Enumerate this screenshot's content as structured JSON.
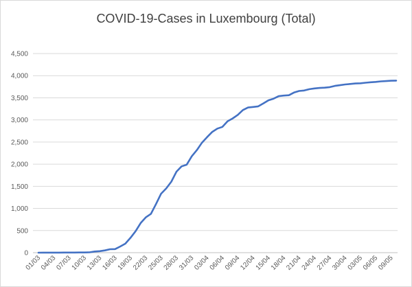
{
  "chart_data": {
    "type": "line",
    "title": "COVID-19-Cases in Luxembourg (Total)",
    "xlabel": "",
    "ylabel": "",
    "ylim": [
      0,
      4500
    ],
    "yticks": [
      0,
      500,
      1000,
      1500,
      2000,
      2500,
      3000,
      3500,
      4000,
      4500
    ],
    "ytick_labels": [
      "0",
      "500",
      "1,000",
      "1,500",
      "2,000",
      "2,500",
      "3,000",
      "3,500",
      "4,000",
      "4,500"
    ],
    "grid": true,
    "legend": "none",
    "series_color": "#4472c4",
    "x": [
      "01/03",
      "02/03",
      "03/03",
      "04/03",
      "05/03",
      "06/03",
      "07/03",
      "08/03",
      "09/03",
      "10/03",
      "11/03",
      "12/03",
      "13/03",
      "14/03",
      "15/03",
      "16/03",
      "17/03",
      "18/03",
      "19/03",
      "20/03",
      "21/03",
      "22/03",
      "23/03",
      "24/03",
      "25/03",
      "26/03",
      "27/03",
      "28/03",
      "29/03",
      "30/03",
      "31/03",
      "01/04",
      "02/04",
      "03/04",
      "04/04",
      "05/04",
      "06/04",
      "07/04",
      "08/04",
      "09/04",
      "10/04",
      "11/04",
      "12/04",
      "13/04",
      "14/04",
      "15/04",
      "16/04",
      "17/04",
      "18/04",
      "19/04",
      "20/04",
      "21/04",
      "22/04",
      "23/04",
      "24/04",
      "25/04",
      "26/04",
      "27/04",
      "28/04",
      "29/04",
      "30/04",
      "01/05",
      "02/05",
      "03/05",
      "04/05",
      "05/05",
      "06/05",
      "07/05",
      "08/05",
      "09/05",
      "10/05"
    ],
    "x_tick_labels": [
      "01/03",
      "04/03",
      "07/03",
      "10/03",
      "13/03",
      "16/03",
      "19/03",
      "22/03",
      "25/03",
      "28/03",
      "31/03",
      "03/04",
      "06/04",
      "09/04",
      "12/04",
      "15/04",
      "18/04",
      "21/04",
      "24/04",
      "27/04",
      "30/04",
      "03/05",
      "06/05",
      "09/05"
    ],
    "series": [
      {
        "values": [
          0,
          1,
          1,
          1,
          2,
          3,
          3,
          3,
          4,
          5,
          7,
          26,
          34,
          51,
          77,
          81,
          140,
          203,
          335,
          484,
          670,
          798,
          875,
          1099,
          1333,
          1453,
          1605,
          1831,
          1950,
          1988,
          2178,
          2319,
          2487,
          2612,
          2729,
          2804,
          2843,
          2970,
          3034,
          3115,
          3223,
          3281,
          3292,
          3307,
          3373,
          3444,
          3480,
          3537,
          3550,
          3558,
          3618,
          3654,
          3665,
          3695,
          3711,
          3723,
          3729,
          3741,
          3769,
          3784,
          3802,
          3812,
          3824,
          3828,
          3840,
          3851,
          3859,
          3871,
          3877,
          3886,
          3888
        ]
      }
    ]
  }
}
